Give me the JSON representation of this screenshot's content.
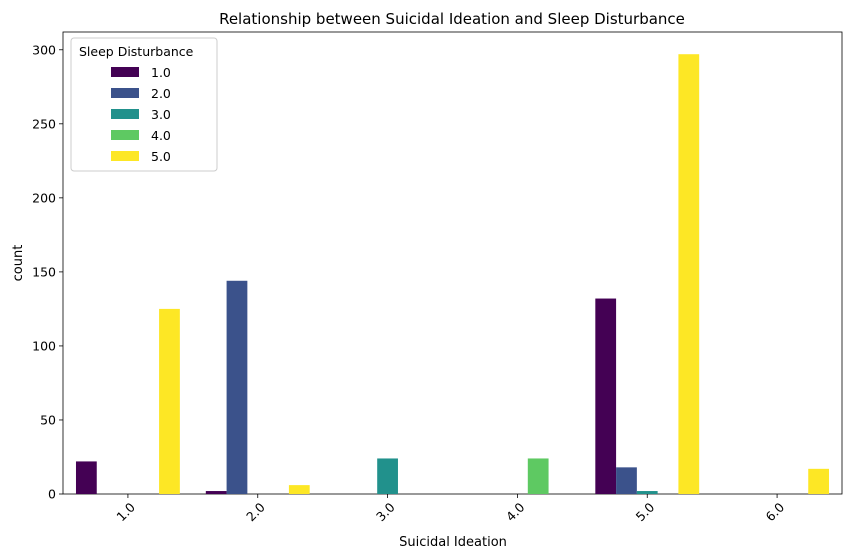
{
  "chart_data": {
    "type": "bar",
    "title": "Relationship between Suicidal Ideation and Sleep Disturbance",
    "xlabel": "Suicidal Ideation",
    "ylabel": "count",
    "categories": [
      "1.0",
      "2.0",
      "3.0",
      "4.0",
      "5.0",
      "6.0"
    ],
    "ylim": [
      0,
      312
    ],
    "yticks": [
      0,
      50,
      100,
      150,
      200,
      250,
      300
    ],
    "grid": false,
    "legend": {
      "title": "Sleep Disturbance",
      "placement": "top-left"
    },
    "series": [
      {
        "name": "1.0",
        "color": "#440154",
        "values": [
          22,
          2,
          0,
          0,
          132,
          0
        ]
      },
      {
        "name": "2.0",
        "color": "#3b528b",
        "values": [
          0,
          144,
          0,
          0,
          18,
          0
        ]
      },
      {
        "name": "3.0",
        "color": "#21918c",
        "values": [
          0,
          0,
          24,
          0,
          2,
          0
        ]
      },
      {
        "name": "4.0",
        "color": "#5ec962",
        "values": [
          0,
          0,
          0,
          24,
          0,
          0
        ]
      },
      {
        "name": "5.0",
        "color": "#fde725",
        "values": [
          125,
          6,
          0,
          0,
          297,
          17
        ]
      }
    ]
  }
}
